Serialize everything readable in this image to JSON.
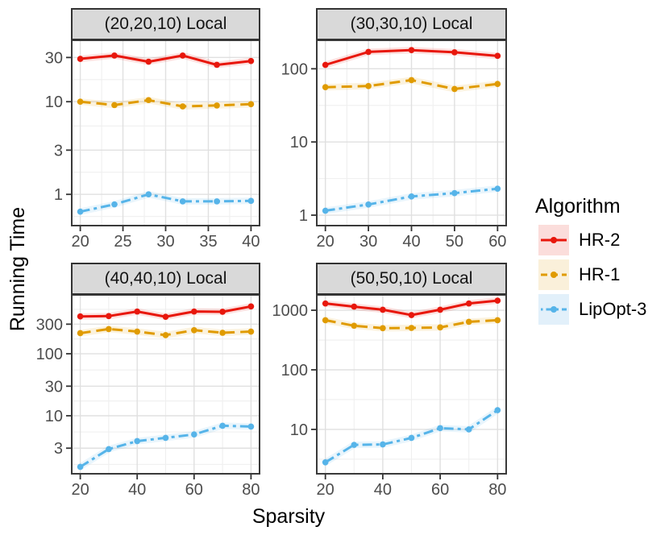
{
  "chart_data": {
    "type": "line",
    "xlabel": "Sparsity",
    "ylabel": "Running Time",
    "y_scale": "log10",
    "grid": "major+minor",
    "theme": {
      "strip_bg": "#d9d9d9",
      "panel_border": "#3a3a3a",
      "grid_major": "#e0e0e0",
      "grid_minor": "#efefef",
      "tick_mark": "#333333",
      "tick_label_color": "#4d4d4d"
    },
    "legend": {
      "title": "Algorithm",
      "position": "right",
      "entries": [
        {
          "label": "HR-2",
          "color": "#e8170c",
          "linetype": "solid",
          "key_bg": "#fbdddb"
        },
        {
          "label": "HR-1",
          "color": "#e09b00",
          "linetype": "dashed",
          "key_bg": "#faf0da"
        },
        {
          "label": "LipOpt-3",
          "color": "#56b4e9",
          "linetype": "twodash",
          "key_bg": "#e2f0fa"
        }
      ]
    },
    "facets": [
      {
        "title": "(20,20,10) Local",
        "x": [
          20,
          24,
          28,
          32,
          36,
          40
        ],
        "x_ticks": [
          20,
          25,
          30,
          35,
          40
        ],
        "x_domain": [
          19,
          41
        ],
        "y_ticks": [
          1,
          3,
          10,
          30
        ],
        "y_domain": [
          0.46,
          46
        ],
        "series": [
          {
            "name": "HR-2",
            "values": [
              29,
              31.5,
              27,
              31.5,
              25,
              27.5
            ]
          },
          {
            "name": "HR-1",
            "values": [
              10,
              9.2,
              10.4,
              8.9,
              9.1,
              9.4
            ]
          },
          {
            "name": "LipOpt-3",
            "values": [
              0.65,
              0.78,
              1.0,
              0.84,
              0.84,
              0.85
            ]
          }
        ]
      },
      {
        "title": "(30,30,10) Local",
        "x": [
          20,
          30,
          40,
          50,
          60
        ],
        "x_ticks": [
          20,
          30,
          40,
          50,
          60
        ],
        "x_domain": [
          18,
          62
        ],
        "y_ticks": [
          1,
          10,
          100
        ],
        "y_domain": [
          0.72,
          245
        ],
        "series": [
          {
            "name": "HR-2",
            "values": [
              113,
              170,
              180,
              168,
              150
            ]
          },
          {
            "name": "HR-1",
            "values": [
              56,
              58,
              70,
              53,
              62
            ]
          },
          {
            "name": "LipOpt-3",
            "values": [
              1.15,
              1.4,
              1.8,
              2.0,
              2.3
            ]
          }
        ]
      },
      {
        "title": "(40,40,10) Local",
        "x": [
          20,
          30,
          40,
          50,
          60,
          70,
          80
        ],
        "x_ticks": [
          20,
          40,
          60,
          80
        ],
        "x_domain": [
          17,
          83
        ],
        "y_ticks": [
          3,
          10,
          30,
          100,
          300
        ],
        "y_domain": [
          1.16,
          890
        ],
        "series": [
          {
            "name": "HR-2",
            "values": [
              400,
              405,
              480,
              395,
              480,
              475,
              580
            ]
          },
          {
            "name": "HR-1",
            "values": [
              215,
              250,
              228,
              200,
              240,
              218,
              228
            ]
          },
          {
            "name": "LipOpt-3",
            "values": [
              1.5,
              2.9,
              3.9,
              4.4,
              5.0,
              6.9,
              6.7
            ]
          }
        ]
      },
      {
        "title": "(50,50,10) Local",
        "x": [
          20,
          30,
          40,
          50,
          60,
          70,
          80
        ],
        "x_ticks": [
          20,
          40,
          60,
          80
        ],
        "x_domain": [
          17,
          83
        ],
        "y_ticks": [
          10,
          100,
          1000
        ],
        "y_domain": [
          1.8,
          1810
        ],
        "series": [
          {
            "name": "HR-2",
            "values": [
              1300,
              1150,
              1020,
              830,
              1020,
              1300,
              1450
            ]
          },
          {
            "name": "HR-1",
            "values": [
              680,
              550,
              500,
              505,
              515,
              640,
              680
            ]
          },
          {
            "name": "LipOpt-3",
            "values": [
              2.8,
              5.5,
              5.6,
              7.2,
              10.5,
              10.0,
              21
            ]
          }
        ]
      }
    ]
  }
}
